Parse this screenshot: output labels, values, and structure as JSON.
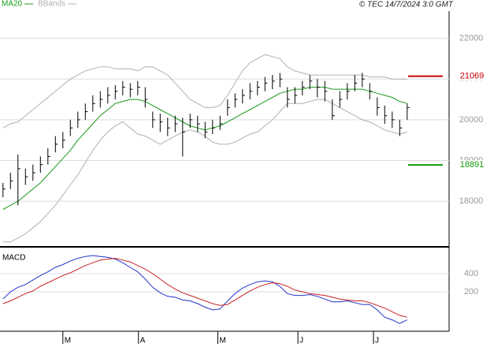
{
  "chart_data": [
    {
      "type": "ohlc",
      "source": "© TEC 14/7/2024 3:0 GMT",
      "xlim": [
        -0.4,
        59.6
      ],
      "ylim": [
        16900,
        22650
      ],
      "yticks": [
        18000,
        19000,
        20000,
        21000,
        22000
      ],
      "grid": true,
      "bars": {
        "color": "#000000",
        "high": [
          18450,
          18700,
          19150,
          18800,
          18900,
          19100,
          19300,
          19600,
          19700,
          20000,
          20200,
          20400,
          20600,
          20700,
          20800,
          20850,
          20950,
          20900,
          20950,
          20800,
          20200,
          20150,
          20050,
          20100,
          20050,
          20150,
          20100,
          19950,
          20000,
          20100,
          20500,
          20650,
          20750,
          20900,
          20950,
          21050,
          21100,
          21150,
          20800,
          20800,
          20950,
          21100,
          21000,
          20950,
          20500,
          20700,
          20900,
          21100,
          21150,
          20900,
          20550,
          20350,
          20200,
          20000,
          20400
        ],
        "low": [
          18100,
          18300,
          17900,
          18400,
          18500,
          18700,
          18900,
          19200,
          19300,
          19600,
          19800,
          20000,
          20200,
          20300,
          20400,
          20500,
          20600,
          20550,
          20600,
          20300,
          19800,
          19700,
          19600,
          19700,
          19100,
          19800,
          19700,
          19550,
          19650,
          19750,
          20100,
          20300,
          20400,
          20500,
          20600,
          20700,
          20750,
          20800,
          20300,
          20400,
          20600,
          20750,
          20550,
          20450,
          20000,
          20300,
          20500,
          20700,
          20800,
          20500,
          20100,
          19900,
          19800,
          19600,
          20000
        ],
        "close": [
          18300,
          18500,
          18800,
          18600,
          18700,
          18900,
          19100,
          19400,
          19500,
          19800,
          20000,
          20200,
          20400,
          20500,
          20600,
          20700,
          20800,
          20750,
          20800,
          20500,
          20000,
          19950,
          19800,
          19900,
          19700,
          20000,
          19900,
          19700,
          19800,
          19900,
          20300,
          20500,
          20600,
          20700,
          20800,
          20900,
          20950,
          21000,
          20500,
          20600,
          20800,
          20950,
          20800,
          20700,
          20100,
          20500,
          20700,
          20900,
          21000,
          20700,
          20300,
          20100,
          20000,
          19800,
          20300
        ]
      },
      "series": [
        {
          "name": "MA20",
          "color": "#1a9a1a",
          "values": [
            17800,
            17900,
            18000,
            18150,
            18300,
            18450,
            18650,
            18850,
            19050,
            19250,
            19500,
            19700,
            19900,
            20100,
            20250,
            20400,
            20450,
            20500,
            20500,
            20450,
            20350,
            20250,
            20150,
            20050,
            19950,
            19850,
            19800,
            19750,
            19800,
            19850,
            19950,
            20050,
            20150,
            20250,
            20350,
            20450,
            20550,
            20650,
            20700,
            20750,
            20750,
            20800,
            20800,
            20800,
            20750,
            20750,
            20750,
            20750,
            20750,
            20700,
            20650,
            20600,
            20550,
            20450,
            20400
          ]
        },
        {
          "name": "BBands",
          "color": "#b0b0b0",
          "upper": [
            19800,
            19900,
            19950,
            20100,
            20250,
            20400,
            20550,
            20700,
            20850,
            21000,
            21100,
            21200,
            21250,
            21300,
            21300,
            21250,
            21250,
            21250,
            21200,
            21300,
            21300,
            21200,
            21100,
            20900,
            20700,
            20500,
            20400,
            20300,
            20300,
            20350,
            20600,
            20900,
            21200,
            21400,
            21500,
            21600,
            21550,
            21500,
            21300,
            21200,
            21150,
            21100,
            21100,
            21100,
            21100,
            21100,
            21100,
            21100,
            21100,
            21050,
            21050,
            21050,
            21000,
            21000,
            21000
          ],
          "lower": [
            17000,
            17000,
            17100,
            17200,
            17350,
            17500,
            17700,
            17900,
            18150,
            18400,
            18650,
            18950,
            19250,
            19500,
            19700,
            19850,
            19950,
            19800,
            19650,
            19600,
            19500,
            19400,
            19500,
            19600,
            19700,
            19750,
            19700,
            19600,
            19450,
            19400,
            19400,
            19450,
            19550,
            19650,
            19700,
            19850,
            20000,
            20200,
            20400,
            20400,
            20400,
            20450,
            20500,
            20500,
            20400,
            20300,
            20200,
            20100,
            20000,
            19950,
            19850,
            19750,
            19700,
            19650,
            19700
          ]
        }
      ],
      "levels": [
        {
          "value": 21069,
          "color": "#cc0000"
        },
        {
          "value": 18891,
          "color": "#119911"
        }
      ]
    },
    {
      "type": "line",
      "title": "MACD",
      "xlim": [
        -0.4,
        59.6
      ],
      "ylim": [
        -235,
        670
      ],
      "yticks": [
        200,
        400
      ],
      "grid": true,
      "xticks": [
        {
          "value": 8,
          "label": "M"
        },
        {
          "value": 18.1,
          "label": "A"
        },
        {
          "value": 28.7,
          "label": "M"
        },
        {
          "value": 39.4,
          "label": "J"
        },
        {
          "value": 49.5,
          "label": "J"
        }
      ],
      "series": [
        {
          "color": "#2233cc",
          "values": [
            120,
            200,
            250,
            280,
            330,
            380,
            420,
            470,
            500,
            540,
            570,
            590,
            600,
            590,
            580,
            560,
            520,
            470,
            420,
            340,
            250,
            190,
            150,
            140,
            110,
            100,
            70,
            30,
            0,
            10,
            100,
            180,
            240,
            280,
            310,
            320,
            310,
            260,
            180,
            160,
            160,
            170,
            150,
            120,
            90,
            90,
            100,
            80,
            60,
            60,
            0,
            -80,
            -110,
            -150,
            -110
          ]
        },
        {
          "color": "#cc2222",
          "values": [
            70,
            100,
            140,
            180,
            210,
            260,
            300,
            340,
            380,
            410,
            450,
            490,
            520,
            550,
            560,
            570,
            550,
            530,
            490,
            450,
            400,
            340,
            280,
            230,
            190,
            160,
            130,
            100,
            70,
            50,
            60,
            110,
            160,
            210,
            250,
            280,
            300,
            290,
            260,
            220,
            200,
            180,
            170,
            160,
            140,
            120,
            110,
            100,
            100,
            80,
            50,
            20,
            -20,
            -60,
            -80
          ]
        }
      ]
    }
  ]
}
